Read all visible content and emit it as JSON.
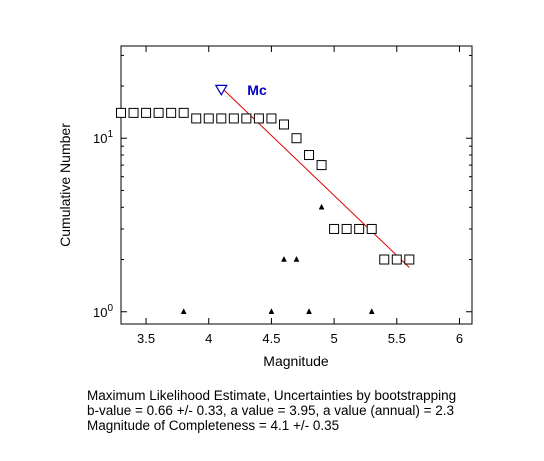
{
  "chart_data": {
    "type": "scatter",
    "xlabel": "Magnitude",
    "ylabel": "Cumulative Number",
    "xlim": [
      3.3,
      6.1
    ],
    "ylim": [
      0.85,
      34
    ],
    "y_scale": "log",
    "x_ticks": [
      3.5,
      4,
      4.5,
      5,
      5.5,
      6
    ],
    "x_tick_labels": [
      "3.5",
      "4",
      "4.5",
      "5",
      "5.5",
      "6"
    ],
    "y_ticks": [
      1,
      10
    ],
    "series": [
      {
        "marker": "square",
        "color": "#000000",
        "x": [
          3.3,
          3.4,
          3.5,
          3.6,
          3.7,
          3.8,
          3.9,
          4.0,
          4.1,
          4.2,
          4.3,
          4.4,
          4.5,
          4.6,
          4.7,
          4.8,
          4.9,
          5.0,
          5.1,
          5.2,
          5.3,
          5.4,
          5.5,
          5.6
        ],
        "y": [
          14,
          14,
          14,
          14,
          14,
          14,
          13,
          13,
          13,
          13,
          13,
          13,
          13,
          12,
          10,
          8,
          7,
          3,
          3,
          3,
          3,
          2,
          2,
          2
        ]
      },
      {
        "marker": "triangle",
        "color": "#000000",
        "x": [
          3.8,
          4.5,
          4.6,
          4.7,
          4.8,
          4.9,
          5.3,
          5.6
        ],
        "y": [
          1,
          1,
          2,
          2,
          1,
          4,
          1,
          2
        ]
      },
      {
        "type": "line",
        "color": "#e00000",
        "x": [
          4.1,
          5.6
        ],
        "y": [
          19.6,
          1.8
        ]
      }
    ],
    "annotations": [
      {
        "label": "Mc",
        "x": 4.1,
        "y": 19,
        "marker": "inverted-triangle",
        "color": "#0000c0"
      }
    ]
  },
  "results": {
    "line1": "Maximum Likelihood Estimate, Uncertainties by bootstrapping",
    "line2": "b-value = 0.66 +/- 0.33,  a value = 3.95,  a value (annual) = 2.3",
    "line3": "Magnitude of Completeness = 4.1 +/- 0.35"
  }
}
